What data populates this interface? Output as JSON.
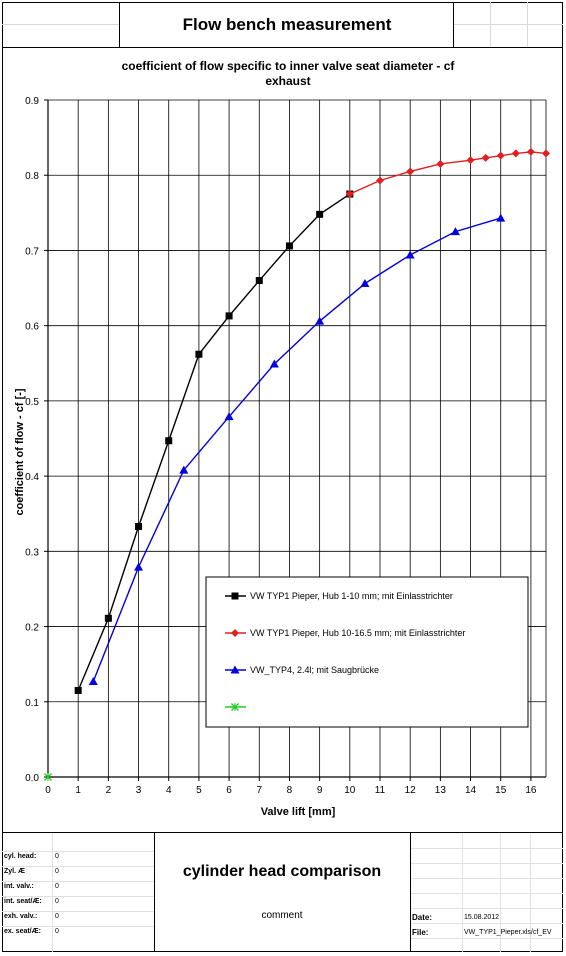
{
  "header": {
    "title": "Flow bench measurement"
  },
  "chart_data": {
    "type": "line",
    "title": "coefficient of flow specific to inner valve seat diameter - cf",
    "subtitle": "exhaust",
    "xlabel": "Valve lift [mm]",
    "ylabel": "coefficient of flow - cf [-]",
    "xlim": [
      0,
      16.5
    ],
    "ylim": [
      0,
      0.9
    ],
    "xticks": [
      0,
      1,
      2,
      3,
      4,
      5,
      6,
      7,
      8,
      9,
      10,
      11,
      12,
      13,
      14,
      15,
      16
    ],
    "yticks": [
      0.0,
      0.1,
      0.2,
      0.3,
      0.4,
      0.5,
      0.6,
      0.7,
      0.8,
      0.9
    ],
    "ytick_labels": [
      "0.0",
      "0.1",
      "0.2",
      "0.3",
      "0.4",
      "0.5",
      "0.6",
      "0.7",
      "0.8",
      "0.9"
    ],
    "grid": true,
    "legend_position": "lower-right",
    "series": [
      {
        "name": "VW TYP1 Pieper, Hub 1-10 mm; mit Einlasstrichter",
        "color": "#000000",
        "marker": "square",
        "x": [
          1,
          2,
          3,
          4,
          5,
          6,
          7,
          8,
          9,
          10
        ],
        "y": [
          0.115,
          0.211,
          0.333,
          0.447,
          0.562,
          0.613,
          0.66,
          0.706,
          0.748,
          0.775
        ]
      },
      {
        "name": "VW TYP1 Pieper, Hub 10-16.5 mm; mit Einlasstrichter",
        "color": "#e02020",
        "marker": "diamond",
        "x": [
          10,
          11,
          12,
          13,
          14,
          14.5,
          15,
          15.5,
          16,
          16.5
        ],
        "y": [
          0.775,
          0.793,
          0.805,
          0.815,
          0.82,
          0.823,
          0.826,
          0.829,
          0.831,
          0.829
        ]
      },
      {
        "name": "VW_TYP4, 2.4l; mit Saugbrücke",
        "color": "#0000e0",
        "marker": "triangle",
        "x": [
          1.5,
          3,
          4.5,
          6,
          7.5,
          9,
          10.5,
          12,
          13.5,
          15
        ],
        "y": [
          0.127,
          0.279,
          0.408,
          0.479,
          0.549,
          0.606,
          0.656,
          0.694,
          0.725,
          0.743
        ]
      },
      {
        "name": "",
        "color": "#22cc22",
        "marker": "x",
        "x": [
          0
        ],
        "y": [
          0
        ]
      }
    ]
  },
  "footer": {
    "info": [
      {
        "label": "cyl. head:",
        "value": "0"
      },
      {
        "label": "Zyl. Æ",
        "value": "0"
      },
      {
        "label": "int. valv.:",
        "value": "0"
      },
      {
        "label": "int. seat/Æ:",
        "value": "0"
      },
      {
        "label": "exh. valv.:",
        "value": "0"
      },
      {
        "label": "ex. seat/Æ:",
        "value": "0"
      }
    ],
    "center_title": "cylinder head comparison",
    "comment_label": "comment",
    "date_label": "Date:",
    "date_value": "15.08.2012",
    "file_label": "File:",
    "file_value": "VW_TYP1_Pieper.xls/cf_EV"
  }
}
